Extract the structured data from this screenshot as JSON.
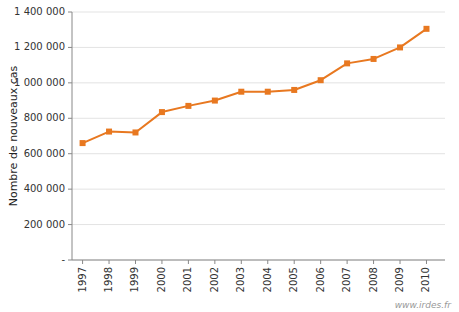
{
  "chart_data": {
    "type": "line",
    "ylabel": "Nombre de nouveaux cas",
    "x": [
      1997,
      1998,
      1999,
      2000,
      2001,
      2002,
      2003,
      2004,
      2005,
      2006,
      2007,
      2008,
      2009,
      2010
    ],
    "values": [
      660000,
      725000,
      720000,
      835000,
      870000,
      900000,
      950000,
      950000,
      960000,
      1015000,
      1110000,
      1135000,
      1200000,
      1305000
    ],
    "color": "#E87820",
    "marker": "square",
    "xlim": [
      1996.6,
      2010.7
    ],
    "xticks": [
      1997,
      1998,
      1999,
      2000,
      2001,
      2002,
      2003,
      2004,
      2005,
      2006,
      2007,
      2008,
      2009,
      2010
    ],
    "ylim": [
      0,
      1400000
    ],
    "yticks": [
      {
        "value": 0,
        "label": "-"
      },
      {
        "value": 200000,
        "label": "200 000"
      },
      {
        "value": 400000,
        "label": "400 000"
      },
      {
        "value": 600000,
        "label": "600 000"
      },
      {
        "value": 800000,
        "label": "800 000"
      },
      {
        "value": 1000000,
        "label": "1 000 000"
      },
      {
        "value": 1200000,
        "label": "1 200 000"
      },
      {
        "value": 1400000,
        "label": "1 400 000"
      }
    ],
    "grid": true,
    "annotations": [
      "www.irdes.fr"
    ]
  }
}
